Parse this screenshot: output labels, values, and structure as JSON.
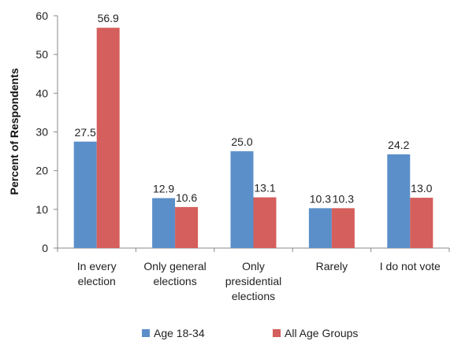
{
  "chart_data": {
    "type": "bar",
    "categories": [
      [
        "In every",
        "election"
      ],
      [
        "Only general",
        "elections"
      ],
      [
        "Only",
        "presidential",
        "elections"
      ],
      [
        "Rarely"
      ],
      [
        "I do not vote"
      ]
    ],
    "series": [
      {
        "name": "Age 18-34",
        "color": "#5b8fc9",
        "values": [
          27.5,
          12.9,
          25.0,
          10.3,
          24.2
        ],
        "labels": [
          "27.5",
          "12.9",
          "25.0",
          "10.3",
          "24.2"
        ]
      },
      {
        "name": "All Age Groups",
        "color": "#d45f5c",
        "values": [
          56.9,
          10.6,
          13.1,
          10.3,
          13.0
        ],
        "labels": [
          "56.9",
          "10.6",
          "13.1",
          "10.3",
          "13.0"
        ]
      }
    ],
    "ylabel": "Percent of Respondents",
    "xlabel": "",
    "ylim": [
      0,
      60
    ],
    "yticks": [
      "0",
      "10",
      "20",
      "30",
      "40",
      "50",
      "60"
    ],
    "grid": false,
    "legend_position": "bottom"
  }
}
